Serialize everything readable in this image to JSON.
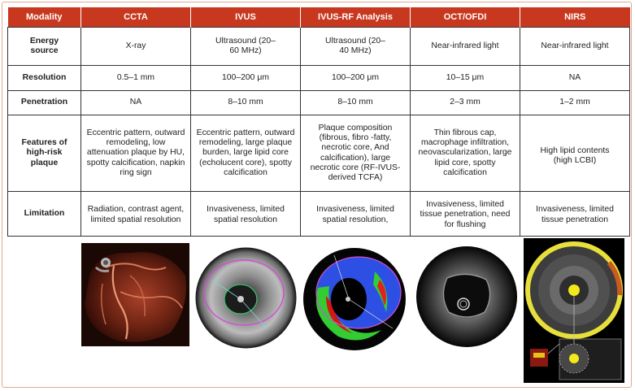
{
  "header": {
    "modality": "Modality",
    "ccta": "CCTA",
    "ivus": "IVUS",
    "ivus_rf": "IVUS-RF Analysis",
    "oct": "OCT/OFDI",
    "nirs": "NIRS"
  },
  "rows": {
    "energy": {
      "label": "Energy source",
      "ccta": "X-ray",
      "ivus": "Ultrasound (20–60 MHz)",
      "ivus_rf": "Ultrasound (20–40 MHz)",
      "oct": "Near-infrared light",
      "nirs": "Near-infrared light"
    },
    "resolution": {
      "label": "Resolution",
      "ccta": "0.5–1 mm",
      "ivus": "100–200 μm",
      "ivus_rf": "100–200 μm",
      "oct": "10–15 μm",
      "nirs": "NA"
    },
    "penetration": {
      "label": "Penetration",
      "ccta": "NA",
      "ivus": "8–10 mm",
      "ivus_rf": "8–10 mm",
      "oct": "2–3 mm",
      "nirs": "1–2 mm"
    },
    "features": {
      "label": "Features of high-risk plaque",
      "ccta": "Eccentric pattern, outward remodeling, low attenuation plaque by HU, spotty calcification, napkin ring sign",
      "ivus": "Eccentric pattern, outward remodeling, large plaque burden, large lipid core (echolucent core), spotty calcification",
      "ivus_rf": "Plaque composition (fibrous, fibro -fatty, necrotic core, And calcification), large necrotic core (RF-IVUS-derived TCFA)",
      "oct": "Thin fibrous cap, macrophage infiltration, neovascularization, large lipid core, spotty calcification",
      "nirs": "High lipid contents (high LCBI)"
    },
    "limitation": {
      "label": "Limitation",
      "ccta": "Radiation, contrast agent, limited spatial resolution",
      "ivus": "Invasiveness, limited spatial resolution",
      "ivus_rf": "Invasiveness, limited spatial resolution,",
      "oct": "Invasiveness, limited tissue penetration, need for flushing",
      "nirs": "Invasiveness, limited tissue penetration"
    }
  },
  "colors": {
    "header_bg": "#c8381f",
    "frame": "#e2a990"
  },
  "images": [
    "ccta-heart-image",
    "ivus-image",
    "ivus-rf-image",
    "oct-image",
    "nirs-image"
  ]
}
